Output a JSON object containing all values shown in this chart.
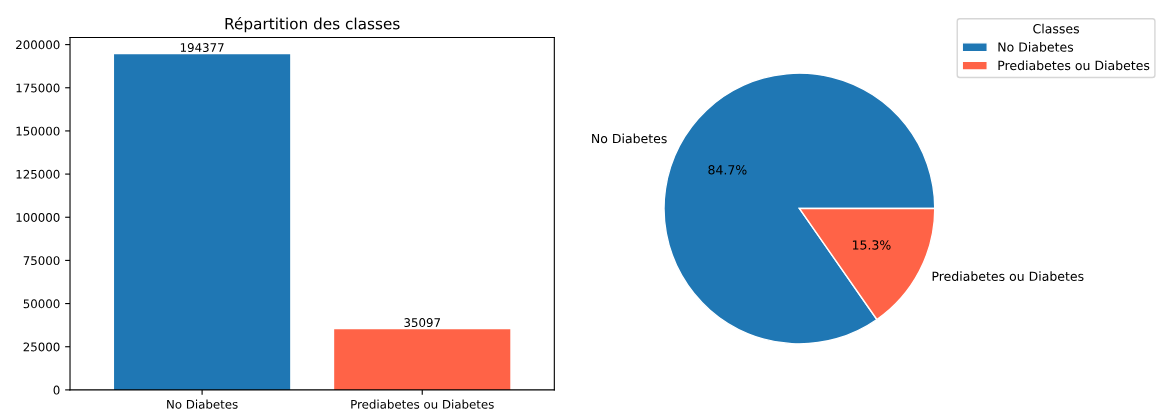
{
  "chart_data": [
    {
      "type": "bar",
      "title": "Répartition des classes",
      "categories": [
        "No Diabetes",
        "Prediabetes ou Diabetes"
      ],
      "values": [
        194377,
        35097
      ],
      "colors": [
        "#1f77b4",
        "#ff6347"
      ],
      "ylim": [
        0,
        204096
      ],
      "yticks": [
        0,
        25000,
        50000,
        75000,
        100000,
        125000,
        150000,
        175000,
        200000
      ],
      "data_labels": true,
      "grid": false
    },
    {
      "type": "pie",
      "categories": [
        "No Diabetes",
        "Prediabetes ou Diabetes"
      ],
      "values": [
        84.7,
        15.3
      ],
      "value_labels": [
        "84.7%",
        "15.3%"
      ],
      "colors": [
        "#1f77b4",
        "#ff6347"
      ],
      "legend_title": "Classes",
      "legend": "top right"
    }
  ]
}
